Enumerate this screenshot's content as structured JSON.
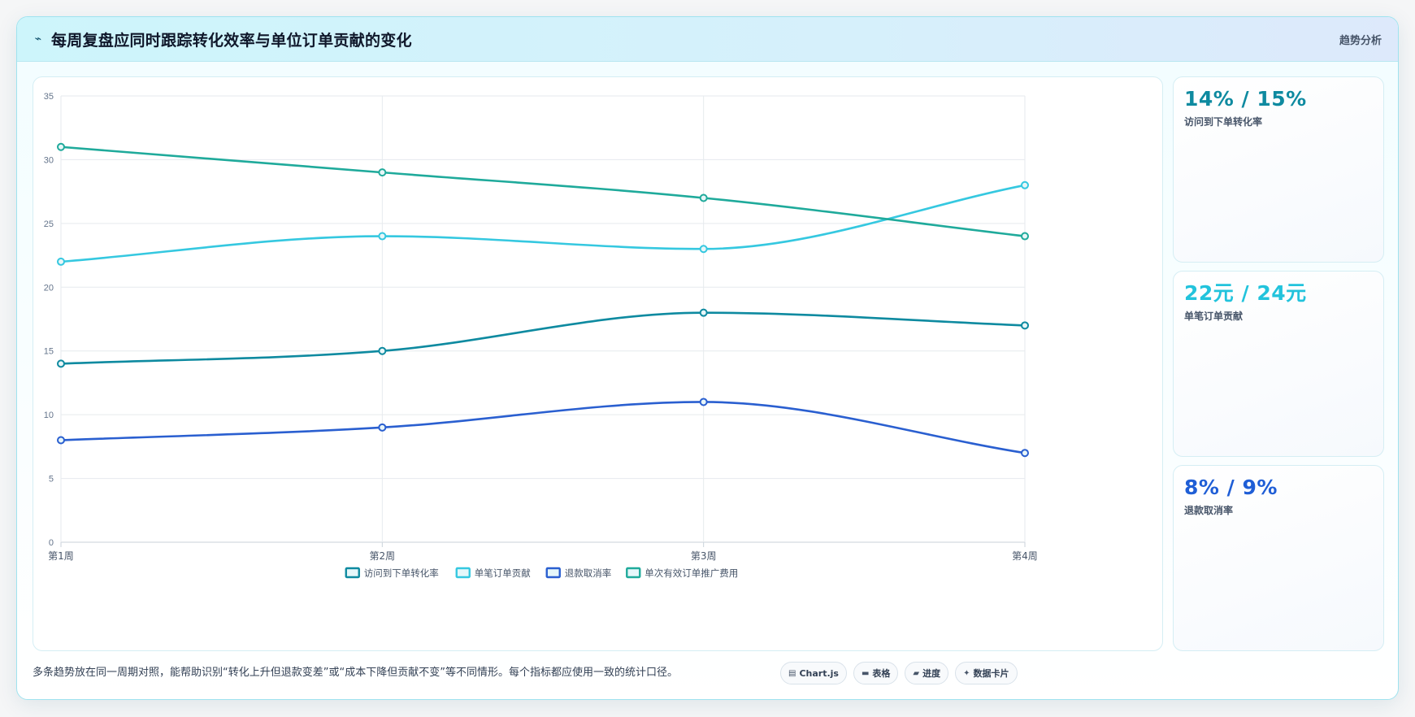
{
  "header": {
    "icon": "bolt-icon",
    "title": "每周复盘应同时跟踪转化效率与单位订单贡献的变化",
    "tag": "趋势分析"
  },
  "chart_data": {
    "type": "line",
    "categories": [
      "第1周",
      "第2周",
      "第3周",
      "第4周"
    ],
    "ylim": [
      0,
      35
    ],
    "yticks": [
      0,
      5,
      10,
      15,
      20,
      25,
      30,
      35
    ],
    "grid": true,
    "legend": "bottom",
    "series": [
      {
        "name": "访问到下单转化率",
        "values": [
          14,
          15,
          18,
          17
        ],
        "color": "#0e8aa0"
      },
      {
        "name": "单笔订单贡献",
        "values": [
          22,
          24,
          23,
          28
        ],
        "color": "#35c8e0"
      },
      {
        "name": "退款取消率",
        "values": [
          8,
          9,
          11,
          7
        ],
        "color": "#2a5fd0"
      },
      {
        "name": "单次有效订单推广费用",
        "values": [
          31,
          29,
          27,
          24
        ],
        "color": "#1faa9b"
      }
    ]
  },
  "stats": [
    {
      "value": "14% / 15%",
      "label": "访问到下单转化率",
      "color": "#0e8aa0"
    },
    {
      "value": "22元 / 24元",
      "label": "单笔订单贡献",
      "color": "#22c3dc"
    },
    {
      "value": "8% / 9%",
      "label": "退款取消率",
      "color": "#1f5ed6"
    }
  ],
  "footer": {
    "note": "多条趋势放在同一周期对照，能帮助识别“转化上升但退款变差”或“成本下降但贡献不变”等不同情形。每个指标都应使用一致的统计口径。",
    "chips": [
      {
        "icon": "chart-icon",
        "glyph": "▤",
        "label": "Chart.js"
      },
      {
        "icon": "table-icon",
        "glyph": "▬",
        "label": "表格"
      },
      {
        "icon": "progress-icon",
        "glyph": "▰",
        "label": "进度"
      },
      {
        "icon": "sparkle-icon",
        "glyph": "✦",
        "label": "数据卡片"
      }
    ]
  }
}
